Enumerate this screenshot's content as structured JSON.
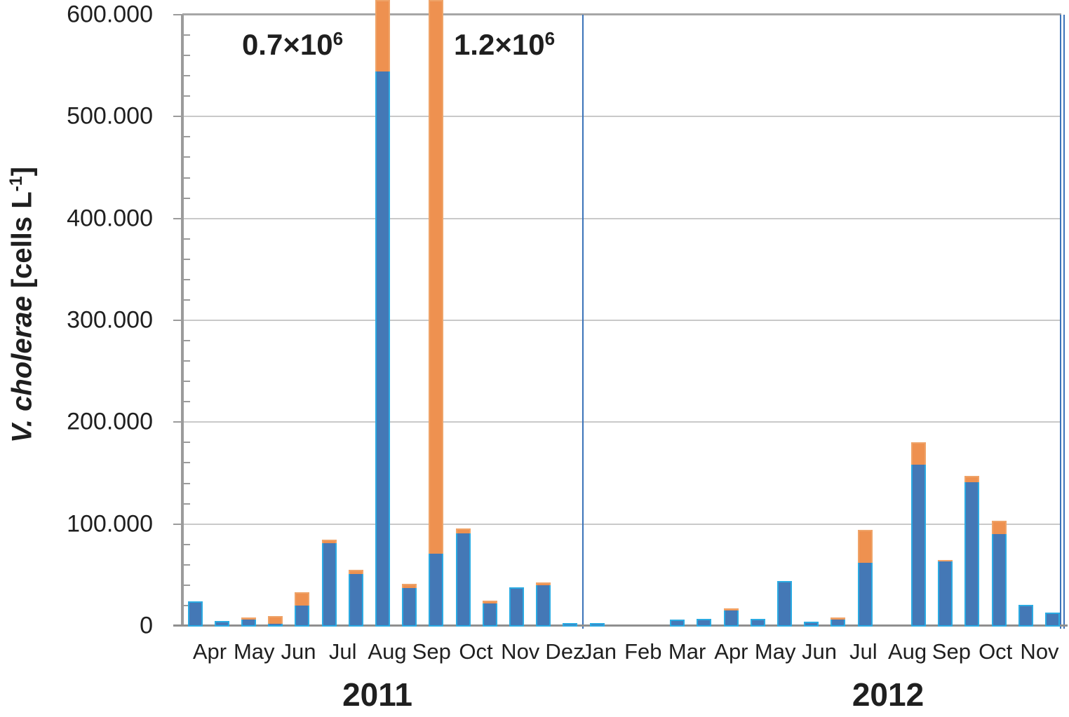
{
  "chart_data": {
    "type": "bar",
    "stacked": true,
    "title": "",
    "ylabel": "V. cholerae [cells L-1]",
    "legend": "none",
    "grid": "horizontal-major",
    "y_axis": {
      "min": 0,
      "max": 600000,
      "tick_interval": 100000,
      "minor_tick_interval": 20000,
      "tick_labels": [
        "600.000",
        "500.000",
        "400.000",
        "300.000",
        "200.000",
        "100.000",
        "0"
      ],
      "title_italic": "V. cholerae",
      "title_rest": " [cells L",
      "title_sup": "-1",
      "title_close": "]"
    },
    "x_axis": {
      "year_groups": [
        {
          "label": "2011",
          "months": [
            "Apr",
            "May",
            "Jun",
            "Jul",
            "Aug",
            "Sep",
            "Oct",
            "Nov",
            "Dez"
          ]
        },
        {
          "label": "2012",
          "months": [
            "Jan",
            "Feb",
            "Mar",
            "Apr",
            "May",
            "Jun",
            "Jul",
            "Aug",
            "Sep",
            "Oct",
            "Nov"
          ]
        }
      ]
    },
    "series": [
      {
        "id": "blue-series",
        "color": "#4478b6",
        "border_color": "#2baae2"
      },
      {
        "id": "orange-series",
        "color": "#ee9150",
        "border_color": "#efa368"
      }
    ],
    "bars": [
      {
        "slot": 0,
        "year": "2011",
        "blue": 25000,
        "orange": 0
      },
      {
        "slot": 1,
        "year": "2011",
        "blue": 6000,
        "orange": 0
      },
      {
        "slot": 2,
        "year": "2011",
        "blue": 7000,
        "orange": 2500
      },
      {
        "slot": 3,
        "year": "2011",
        "blue": 3000,
        "orange": 8000
      },
      {
        "slot": 4,
        "year": "2011",
        "blue": 21000,
        "orange": 13000
      },
      {
        "slot": 5,
        "year": "2011",
        "blue": 82000,
        "orange": 4000
      },
      {
        "slot": 6,
        "year": "2011",
        "blue": 52000,
        "orange": 4000
      },
      {
        "slot": 7,
        "year": "2011",
        "blue": 545000,
        "orange": 155000,
        "clipped": true,
        "total_label": "0.7×10⁶"
      },
      {
        "slot": 8,
        "year": "2011",
        "blue": 38000,
        "orange": 4000
      },
      {
        "slot": 9,
        "year": "2011",
        "blue": 72000,
        "orange": 1128000,
        "clipped": true,
        "total_label": "1.2×10⁶"
      },
      {
        "slot": 10,
        "year": "2011",
        "blue": 92000,
        "orange": 5000
      },
      {
        "slot": 11,
        "year": "2011",
        "blue": 23000,
        "orange": 3000
      },
      {
        "slot": 12,
        "year": "2011",
        "blue": 39000,
        "orange": 0
      },
      {
        "slot": 13,
        "year": "2011",
        "blue": 41000,
        "orange": 2500
      },
      {
        "slot": 14,
        "year": "2011",
        "blue": 4000,
        "orange": 0
      },
      {
        "slot": 15,
        "year": "2012",
        "blue": 3500,
        "orange": 0
      },
      {
        "slot": 18,
        "year": "2012",
        "blue": 7000,
        "orange": 0
      },
      {
        "slot": 19,
        "year": "2012",
        "blue": 8000,
        "orange": 0
      },
      {
        "slot": 20,
        "year": "2012",
        "blue": 16000,
        "orange": 2000
      },
      {
        "slot": 21,
        "year": "2012",
        "blue": 8000,
        "orange": 0
      },
      {
        "slot": 22,
        "year": "2012",
        "blue": 45000,
        "orange": 0
      },
      {
        "slot": 23,
        "year": "2012",
        "blue": 5000,
        "orange": 0
      },
      {
        "slot": 24,
        "year": "2012",
        "blue": 7000,
        "orange": 2000
      },
      {
        "slot": 25,
        "year": "2012",
        "blue": 63000,
        "orange": 32000
      },
      {
        "slot": 27,
        "year": "2012",
        "blue": 159000,
        "orange": 22000
      },
      {
        "slot": 28,
        "year": "2012",
        "blue": 64000,
        "orange": 2000
      },
      {
        "slot": 29,
        "year": "2012",
        "blue": 142000,
        "orange": 6000
      },
      {
        "slot": 30,
        "year": "2012",
        "blue": 91000,
        "orange": 13000
      },
      {
        "slot": 31,
        "year": "2012",
        "blue": 22000,
        "orange": 0
      },
      {
        "slot": 32,
        "year": "2012",
        "blue": 14000,
        "orange": 0
      }
    ],
    "annotations": [
      {
        "base": "0.7×10",
        "sup": "6"
      },
      {
        "base": "1.2×10",
        "sup": "6"
      }
    ]
  }
}
